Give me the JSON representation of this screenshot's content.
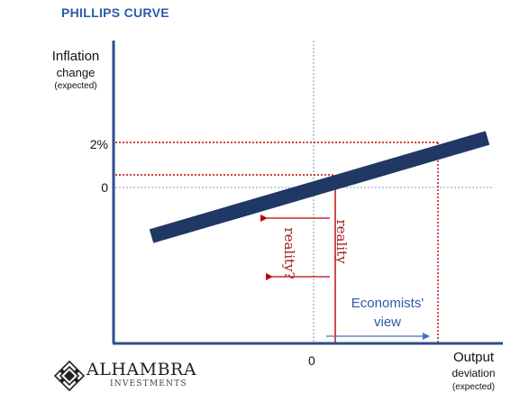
{
  "title": "PHILLIPS CURVE",
  "y_axis": {
    "label_line1": "Inflation",
    "label_line2": "change",
    "label_line3": "(expected)",
    "tick_2pct": "2%",
    "tick_0": "0"
  },
  "x_axis": {
    "tick_0": "0",
    "label_line1": "Output",
    "label_line2": "deviation",
    "label_line3": "(expected)"
  },
  "annotations": {
    "reality": "reality",
    "reality_question": "reality?",
    "economists_line1": "Economists'",
    "economists_line2": "view"
  },
  "logo": {
    "name": "ALHAMBRA",
    "sub": "INVESTMENTS"
  },
  "colors": {
    "curve": "#1f3864",
    "axis": "#2f4d89",
    "red": "#c00000",
    "blue": "#4472c4",
    "title": "#2d5aa8",
    "gridline": "#5b7bbd"
  }
}
